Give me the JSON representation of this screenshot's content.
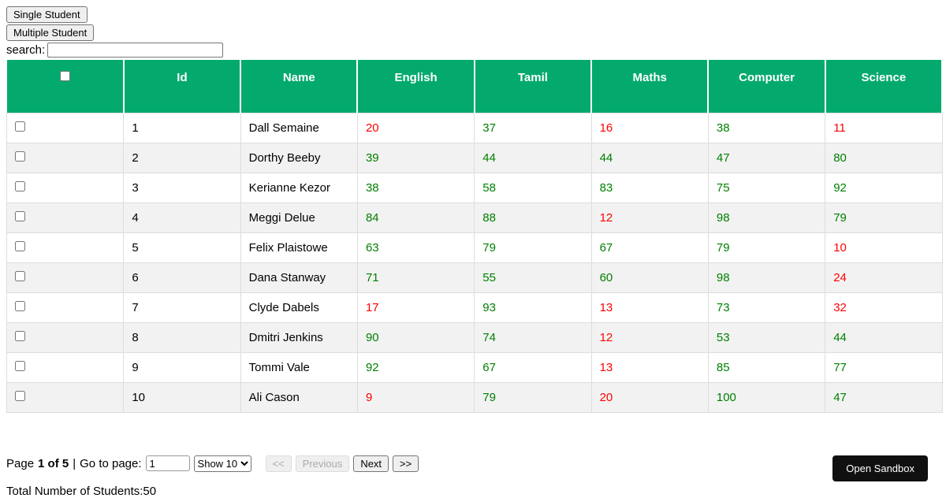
{
  "colors": {
    "header_bg": "#04AA6D",
    "pass_text": "#008000",
    "fail_text": "#FF0000",
    "row_alt_bg": "#F2F2F2",
    "cell_border": "#DDDDDD",
    "sandbox_bg": "#101010",
    "sandbox_text": "#FFFFFF"
  },
  "toolbar": {
    "single_student_label": "Single Student",
    "multiple_student_label": "Multiple Student"
  },
  "search": {
    "label": "search:",
    "value": "",
    "placeholder": ""
  },
  "table": {
    "columns": [
      "Id",
      "Name",
      "English",
      "Tamil",
      "Maths",
      "Computer",
      "Science"
    ],
    "header_checkbox_checked": false,
    "rows": [
      {
        "checked": false,
        "id": "1",
        "name": "Dall Semaine",
        "marks": [
          {
            "value": "20",
            "status": "fail"
          },
          {
            "value": "37",
            "status": "pass"
          },
          {
            "value": "16",
            "status": "fail"
          },
          {
            "value": "38",
            "status": "pass"
          },
          {
            "value": "11",
            "status": "fail"
          }
        ]
      },
      {
        "checked": false,
        "id": "2",
        "name": "Dorthy Beeby",
        "marks": [
          {
            "value": "39",
            "status": "pass"
          },
          {
            "value": "44",
            "status": "pass"
          },
          {
            "value": "44",
            "status": "pass"
          },
          {
            "value": "47",
            "status": "pass"
          },
          {
            "value": "80",
            "status": "pass"
          }
        ]
      },
      {
        "checked": false,
        "id": "3",
        "name": "Kerianne Kezor",
        "marks": [
          {
            "value": "38",
            "status": "pass"
          },
          {
            "value": "58",
            "status": "pass"
          },
          {
            "value": "83",
            "status": "pass"
          },
          {
            "value": "75",
            "status": "pass"
          },
          {
            "value": "92",
            "status": "pass"
          }
        ]
      },
      {
        "checked": false,
        "id": "4",
        "name": "Meggi Delue",
        "marks": [
          {
            "value": "84",
            "status": "pass"
          },
          {
            "value": "88",
            "status": "pass"
          },
          {
            "value": "12",
            "status": "fail"
          },
          {
            "value": "98",
            "status": "pass"
          },
          {
            "value": "79",
            "status": "pass"
          }
        ]
      },
      {
        "checked": false,
        "id": "5",
        "name": "Felix Plaistowe",
        "marks": [
          {
            "value": "63",
            "status": "pass"
          },
          {
            "value": "79",
            "status": "pass"
          },
          {
            "value": "67",
            "status": "pass"
          },
          {
            "value": "79",
            "status": "pass"
          },
          {
            "value": "10",
            "status": "fail"
          }
        ]
      },
      {
        "checked": false,
        "id": "6",
        "name": "Dana Stanway",
        "marks": [
          {
            "value": "71",
            "status": "pass"
          },
          {
            "value": "55",
            "status": "pass"
          },
          {
            "value": "60",
            "status": "pass"
          },
          {
            "value": "98",
            "status": "pass"
          },
          {
            "value": "24",
            "status": "fail"
          }
        ]
      },
      {
        "checked": false,
        "id": "7",
        "name": "Clyde Dabels",
        "marks": [
          {
            "value": "17",
            "status": "fail"
          },
          {
            "value": "93",
            "status": "pass"
          },
          {
            "value": "13",
            "status": "fail"
          },
          {
            "value": "73",
            "status": "pass"
          },
          {
            "value": "32",
            "status": "fail"
          }
        ]
      },
      {
        "checked": false,
        "id": "8",
        "name": "Dmitri Jenkins",
        "marks": [
          {
            "value": "90",
            "status": "pass"
          },
          {
            "value": "74",
            "status": "pass"
          },
          {
            "value": "12",
            "status": "fail"
          },
          {
            "value": "53",
            "status": "pass"
          },
          {
            "value": "44",
            "status": "pass"
          }
        ]
      },
      {
        "checked": false,
        "id": "9",
        "name": "Tommi Vale",
        "marks": [
          {
            "value": "92",
            "status": "pass"
          },
          {
            "value": "67",
            "status": "pass"
          },
          {
            "value": "13",
            "status": "fail"
          },
          {
            "value": "85",
            "status": "pass"
          },
          {
            "value": "77",
            "status": "pass"
          }
        ]
      },
      {
        "checked": false,
        "id": "10",
        "name": "Ali Cason",
        "marks": [
          {
            "value": "9",
            "status": "fail"
          },
          {
            "value": "79",
            "status": "pass"
          },
          {
            "value": "20",
            "status": "fail"
          },
          {
            "value": "100",
            "status": "pass"
          },
          {
            "value": "47",
            "status": "pass"
          }
        ]
      }
    ]
  },
  "pagination": {
    "page_label": "Page",
    "page_current": "1 of 5",
    "separator": "|",
    "goto_label": "Go to page:",
    "goto_value": "1",
    "page_size_selected": "Show 10",
    "first_label": "<<",
    "previous_label": "Previous",
    "next_label": "Next",
    "last_label": ">>"
  },
  "sandbox": {
    "button_label": "Open Sandbox"
  },
  "footer": {
    "total_label": "Total Number of Students:50"
  }
}
